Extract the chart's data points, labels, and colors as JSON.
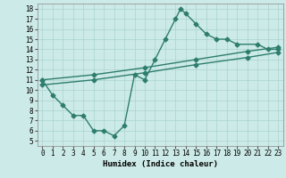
{
  "title": "",
  "xlabel": "Humidex (Indice chaleur)",
  "bg_color": "#cceae7",
  "line_color": "#2e7d6e",
  "xlim": [
    -0.5,
    23.5
  ],
  "ylim": [
    4.5,
    18.5
  ],
  "xticks": [
    0,
    1,
    2,
    3,
    4,
    5,
    6,
    7,
    8,
    9,
    10,
    11,
    12,
    13,
    14,
    15,
    16,
    17,
    18,
    19,
    20,
    21,
    22,
    23
  ],
  "yticks": [
    5,
    6,
    7,
    8,
    9,
    10,
    11,
    12,
    13,
    14,
    15,
    16,
    17,
    18
  ],
  "curve1_x": [
    0,
    1,
    2,
    3,
    4,
    5,
    6,
    7,
    8,
    9,
    10,
    11,
    12,
    13,
    13.5,
    14,
    15,
    16,
    17,
    18,
    19,
    21,
    22,
    23
  ],
  "curve1_y": [
    11,
    9.5,
    8.5,
    7.5,
    7.5,
    6,
    6,
    5.5,
    6.5,
    11.5,
    11,
    13,
    15,
    17,
    18,
    17.5,
    16.5,
    15.5,
    15,
    15,
    14.5,
    14.5,
    14,
    14
  ],
  "line1_x": [
    0,
    5,
    10,
    15,
    20,
    23
  ],
  "line1_y": [
    11.0,
    11.5,
    12.2,
    13.0,
    13.8,
    14.2
  ],
  "line2_x": [
    0,
    5,
    10,
    15,
    20,
    23
  ],
  "line2_y": [
    10.5,
    11.0,
    11.7,
    12.5,
    13.2,
    13.7
  ],
  "grid_color": "#aad4cf",
  "marker": "D",
  "markersize": 2.5,
  "linewidth": 1.0
}
